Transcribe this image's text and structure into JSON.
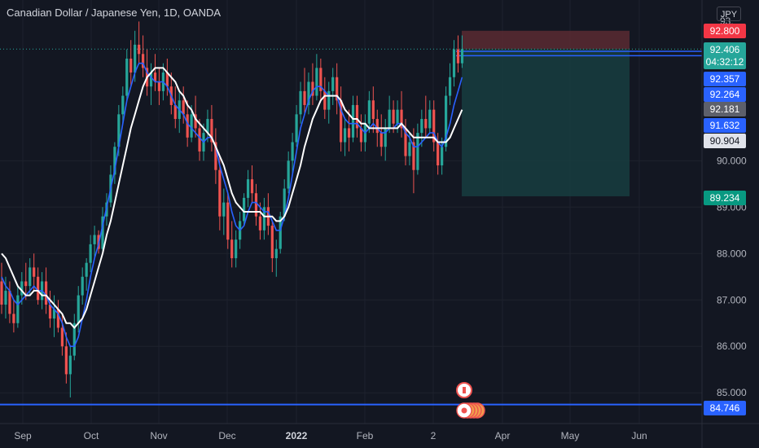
{
  "header": {
    "symbol_title": "Canadian Dollar / Japanese Yen, 1D, OANDA",
    "currency": "JPY"
  },
  "colors": {
    "background": "#131722",
    "grid": "#1e222d",
    "axis_text": "#b2b5be",
    "bull": "#26a69a",
    "bear": "#ef5350",
    "ma_fast": "#2962ff",
    "ma_slow": "#ffffff",
    "horizontal_line": "#2962ff",
    "stop_zone": "#5b2a31",
    "target_zone": "#173d3f"
  },
  "chart_data": {
    "type": "candlestick",
    "title": "Canadian Dollar / Japanese Yen, 1D, OANDA",
    "ylim": [
      84.6,
      93.2
    ],
    "grid": true,
    "x_ticks": [
      "Sep",
      "Oct",
      "Nov",
      "Dec",
      "2022",
      "Feb",
      "2",
      "Apr",
      "May",
      "Jun"
    ],
    "y_ticks": [
      85.0,
      86.0,
      87.0,
      88.0,
      89.0,
      90.0
    ],
    "price_labels": [
      {
        "text": "92.800",
        "kind": "stop"
      },
      {
        "text": "92.406",
        "kind": "last"
      },
      {
        "text": "04:32:12",
        "kind": "countdown"
      },
      {
        "text": "92.357",
        "kind": "blue"
      },
      {
        "text": "92.264",
        "kind": "blue"
      },
      {
        "text": "92.181",
        "kind": "gray"
      },
      {
        "text": "91.632",
        "kind": "blue"
      },
      {
        "text": "90.904",
        "kind": "white"
      },
      {
        "text": "89.234",
        "kind": "target"
      },
      {
        "text": "84.746",
        "kind": "blue"
      }
    ],
    "horizontal_line": 84.746,
    "last_price": 92.406,
    "position": {
      "entry": 92.406,
      "stop": 92.8,
      "target": 89.234
    },
    "candles": [
      {
        "o": 87.4,
        "h": 87.8,
        "l": 86.7,
        "c": 86.9
      },
      {
        "o": 86.9,
        "h": 87.5,
        "l": 86.6,
        "c": 87.2
      },
      {
        "o": 87.2,
        "h": 87.4,
        "l": 86.5,
        "c": 86.7
      },
      {
        "o": 86.7,
        "h": 87.0,
        "l": 86.3,
        "c": 86.5
      },
      {
        "o": 86.5,
        "h": 87.3,
        "l": 86.4,
        "c": 87.1
      },
      {
        "o": 87.1,
        "h": 87.6,
        "l": 86.9,
        "c": 87.4
      },
      {
        "o": 87.4,
        "h": 87.8,
        "l": 87.0,
        "c": 87.3
      },
      {
        "o": 87.3,
        "h": 87.9,
        "l": 87.1,
        "c": 87.7
      },
      {
        "o": 87.7,
        "h": 88.0,
        "l": 87.2,
        "c": 87.5
      },
      {
        "o": 87.5,
        "h": 87.7,
        "l": 86.9,
        "c": 87.0
      },
      {
        "o": 87.0,
        "h": 87.6,
        "l": 86.8,
        "c": 87.4
      },
      {
        "o": 87.4,
        "h": 87.7,
        "l": 86.7,
        "c": 86.9
      },
      {
        "o": 86.9,
        "h": 87.2,
        "l": 86.4,
        "c": 86.6
      },
      {
        "o": 86.6,
        "h": 87.1,
        "l": 86.2,
        "c": 86.8
      },
      {
        "o": 86.8,
        "h": 87.0,
        "l": 86.3,
        "c": 86.4
      },
      {
        "o": 86.4,
        "h": 86.7,
        "l": 85.8,
        "c": 86.0
      },
      {
        "o": 86.0,
        "h": 86.3,
        "l": 85.2,
        "c": 85.4
      },
      {
        "o": 85.4,
        "h": 86.0,
        "l": 84.9,
        "c": 85.8
      },
      {
        "o": 85.8,
        "h": 86.7,
        "l": 85.7,
        "c": 86.5
      },
      {
        "o": 86.5,
        "h": 87.3,
        "l": 86.3,
        "c": 87.1
      },
      {
        "o": 87.1,
        "h": 87.7,
        "l": 86.9,
        "c": 87.5
      },
      {
        "o": 87.5,
        "h": 87.9,
        "l": 87.2,
        "c": 87.8
      },
      {
        "o": 87.8,
        "h": 88.4,
        "l": 87.6,
        "c": 88.2
      },
      {
        "o": 88.2,
        "h": 88.6,
        "l": 87.9,
        "c": 88.4
      },
      {
        "o": 88.4,
        "h": 88.5,
        "l": 88.0,
        "c": 88.1
      },
      {
        "o": 88.1,
        "h": 89.0,
        "l": 88.0,
        "c": 88.8
      },
      {
        "o": 88.8,
        "h": 89.3,
        "l": 88.6,
        "c": 89.1
      },
      {
        "o": 89.1,
        "h": 89.9,
        "l": 89.0,
        "c": 89.7
      },
      {
        "o": 89.7,
        "h": 90.4,
        "l": 89.5,
        "c": 90.3
      },
      {
        "o": 90.3,
        "h": 91.2,
        "l": 90.1,
        "c": 91.0
      },
      {
        "o": 91.0,
        "h": 91.6,
        "l": 90.8,
        "c": 91.4
      },
      {
        "o": 91.4,
        "h": 92.4,
        "l": 91.3,
        "c": 92.2
      },
      {
        "o": 92.2,
        "h": 92.6,
        "l": 91.6,
        "c": 91.9
      },
      {
        "o": 91.9,
        "h": 92.8,
        "l": 91.7,
        "c": 92.5
      },
      {
        "o": 92.5,
        "h": 93.0,
        "l": 92.1,
        "c": 92.3
      },
      {
        "o": 92.3,
        "h": 92.7,
        "l": 91.8,
        "c": 92.0
      },
      {
        "o": 92.0,
        "h": 92.4,
        "l": 91.4,
        "c": 91.6
      },
      {
        "o": 91.6,
        "h": 92.1,
        "l": 91.2,
        "c": 91.9
      },
      {
        "o": 91.9,
        "h": 92.3,
        "l": 91.5,
        "c": 91.7
      },
      {
        "o": 91.7,
        "h": 92.0,
        "l": 91.2,
        "c": 91.5
      },
      {
        "o": 91.5,
        "h": 92.1,
        "l": 91.3,
        "c": 91.9
      },
      {
        "o": 91.9,
        "h": 92.2,
        "l": 91.4,
        "c": 91.6
      },
      {
        "o": 91.6,
        "h": 91.9,
        "l": 91.0,
        "c": 91.2
      },
      {
        "o": 91.2,
        "h": 91.6,
        "l": 90.7,
        "c": 90.9
      },
      {
        "o": 90.9,
        "h": 91.5,
        "l": 90.6,
        "c": 91.3
      },
      {
        "o": 91.3,
        "h": 91.6,
        "l": 90.8,
        "c": 91.0
      },
      {
        "o": 91.0,
        "h": 91.3,
        "l": 90.3,
        "c": 90.5
      },
      {
        "o": 90.5,
        "h": 91.2,
        "l": 90.4,
        "c": 91.0
      },
      {
        "o": 91.0,
        "h": 91.4,
        "l": 90.5,
        "c": 90.7
      },
      {
        "o": 90.7,
        "h": 90.9,
        "l": 90.0,
        "c": 90.2
      },
      {
        "o": 90.2,
        "h": 90.8,
        "l": 90.0,
        "c": 90.6
      },
      {
        "o": 90.6,
        "h": 91.1,
        "l": 90.4,
        "c": 90.9
      },
      {
        "o": 90.9,
        "h": 91.2,
        "l": 90.2,
        "c": 90.4
      },
      {
        "o": 90.4,
        "h": 90.7,
        "l": 89.5,
        "c": 89.8
      },
      {
        "o": 89.8,
        "h": 90.1,
        "l": 88.5,
        "c": 88.8
      },
      {
        "o": 88.8,
        "h": 89.4,
        "l": 88.4,
        "c": 89.1
      },
      {
        "o": 89.1,
        "h": 89.3,
        "l": 88.1,
        "c": 88.3
      },
      {
        "o": 88.3,
        "h": 88.7,
        "l": 87.7,
        "c": 87.9
      },
      {
        "o": 87.9,
        "h": 88.5,
        "l": 87.7,
        "c": 88.3
      },
      {
        "o": 88.3,
        "h": 88.9,
        "l": 88.1,
        "c": 88.7
      },
      {
        "o": 88.7,
        "h": 89.3,
        "l": 88.6,
        "c": 89.2
      },
      {
        "o": 89.2,
        "h": 89.8,
        "l": 89.0,
        "c": 89.6
      },
      {
        "o": 89.6,
        "h": 89.9,
        "l": 89.1,
        "c": 89.3
      },
      {
        "o": 89.3,
        "h": 89.5,
        "l": 88.6,
        "c": 88.8
      },
      {
        "o": 88.8,
        "h": 89.1,
        "l": 88.3,
        "c": 88.5
      },
      {
        "o": 88.5,
        "h": 89.2,
        "l": 88.3,
        "c": 89.0
      },
      {
        "o": 89.0,
        "h": 89.3,
        "l": 88.4,
        "c": 88.6
      },
      {
        "o": 88.6,
        "h": 88.7,
        "l": 87.6,
        "c": 87.9
      },
      {
        "o": 87.9,
        "h": 88.3,
        "l": 87.5,
        "c": 88.1
      },
      {
        "o": 88.1,
        "h": 88.9,
        "l": 88.0,
        "c": 88.8
      },
      {
        "o": 88.8,
        "h": 89.6,
        "l": 88.7,
        "c": 89.4
      },
      {
        "o": 89.4,
        "h": 90.2,
        "l": 89.3,
        "c": 90.0
      },
      {
        "o": 90.0,
        "h": 90.6,
        "l": 89.7,
        "c": 90.4
      },
      {
        "o": 90.4,
        "h": 91.2,
        "l": 90.3,
        "c": 91.0
      },
      {
        "o": 91.0,
        "h": 91.7,
        "l": 90.8,
        "c": 91.5
      },
      {
        "o": 91.5,
        "h": 92.0,
        "l": 91.0,
        "c": 91.2
      },
      {
        "o": 91.2,
        "h": 91.9,
        "l": 91.0,
        "c": 91.7
      },
      {
        "o": 91.7,
        "h": 92.1,
        "l": 91.2,
        "c": 91.4
      },
      {
        "o": 91.4,
        "h": 92.3,
        "l": 91.3,
        "c": 92.0
      },
      {
        "o": 92.0,
        "h": 92.2,
        "l": 91.3,
        "c": 91.5
      },
      {
        "o": 91.5,
        "h": 91.8,
        "l": 90.9,
        "c": 91.1
      },
      {
        "o": 91.1,
        "h": 91.7,
        "l": 90.8,
        "c": 91.5
      },
      {
        "o": 91.5,
        "h": 92.0,
        "l": 91.2,
        "c": 91.8
      },
      {
        "o": 91.8,
        "h": 92.1,
        "l": 91.0,
        "c": 91.3
      },
      {
        "o": 91.3,
        "h": 91.6,
        "l": 90.2,
        "c": 90.4
      },
      {
        "o": 90.4,
        "h": 90.9,
        "l": 90.1,
        "c": 90.7
      },
      {
        "o": 90.7,
        "h": 91.1,
        "l": 90.2,
        "c": 90.5
      },
      {
        "o": 90.5,
        "h": 91.4,
        "l": 90.4,
        "c": 91.2
      },
      {
        "o": 91.2,
        "h": 91.4,
        "l": 90.5,
        "c": 90.7
      },
      {
        "o": 90.7,
        "h": 91.0,
        "l": 90.2,
        "c": 90.4
      },
      {
        "o": 90.4,
        "h": 91.0,
        "l": 90.2,
        "c": 90.8
      },
      {
        "o": 90.8,
        "h": 91.5,
        "l": 90.6,
        "c": 91.3
      },
      {
        "o": 91.3,
        "h": 91.6,
        "l": 90.6,
        "c": 90.9
      },
      {
        "o": 90.9,
        "h": 91.1,
        "l": 90.3,
        "c": 90.6
      },
      {
        "o": 90.6,
        "h": 91.0,
        "l": 90.1,
        "c": 90.3
      },
      {
        "o": 90.3,
        "h": 90.9,
        "l": 90.0,
        "c": 90.7
      },
      {
        "o": 90.7,
        "h": 91.4,
        "l": 90.6,
        "c": 91.1
      },
      {
        "o": 91.1,
        "h": 91.3,
        "l": 90.6,
        "c": 90.8
      },
      {
        "o": 90.8,
        "h": 91.3,
        "l": 90.6,
        "c": 91.1
      },
      {
        "o": 91.1,
        "h": 91.5,
        "l": 90.5,
        "c": 90.7
      },
      {
        "o": 90.7,
        "h": 90.9,
        "l": 89.9,
        "c": 90.1
      },
      {
        "o": 90.1,
        "h": 90.6,
        "l": 89.9,
        "c": 90.4
      },
      {
        "o": 90.4,
        "h": 90.7,
        "l": 89.3,
        "c": 89.8
      },
      {
        "o": 89.8,
        "h": 90.8,
        "l": 89.7,
        "c": 90.6
      },
      {
        "o": 90.6,
        "h": 91.1,
        "l": 90.3,
        "c": 90.9
      },
      {
        "o": 90.9,
        "h": 91.4,
        "l": 90.5,
        "c": 90.7
      },
      {
        "o": 90.7,
        "h": 91.3,
        "l": 90.6,
        "c": 91.1
      },
      {
        "o": 91.1,
        "h": 91.3,
        "l": 90.2,
        "c": 90.4
      },
      {
        "o": 90.4,
        "h": 90.6,
        "l": 89.7,
        "c": 89.9
      },
      {
        "o": 89.9,
        "h": 90.5,
        "l": 89.7,
        "c": 90.3
      },
      {
        "o": 90.3,
        "h": 91.6,
        "l": 90.2,
        "c": 91.4
      },
      {
        "o": 91.4,
        "h": 92.1,
        "l": 91.2,
        "c": 91.8
      },
      {
        "o": 91.8,
        "h": 92.6,
        "l": 91.6,
        "c": 92.4
      },
      {
        "o": 92.4,
        "h": 92.7,
        "l": 91.9,
        "c": 92.1
      },
      {
        "o": 92.1,
        "h": 92.7,
        "l": 92.0,
        "c": 92.406
      }
    ],
    "series": [
      {
        "name": "",
        "color": "#2962ff",
        "values": [
          87.5,
          87.3,
          87.2,
          87.0,
          86.9,
          87.0,
          87.1,
          87.2,
          87.3,
          87.2,
          87.2,
          87.1,
          86.9,
          86.8,
          86.7,
          86.5,
          86.2,
          86.0,
          86.0,
          86.2,
          86.6,
          87.0,
          87.5,
          87.9,
          88.2,
          88.6,
          89.0,
          89.4,
          89.8,
          90.3,
          90.8,
          91.3,
          91.6,
          91.9,
          92.1,
          92.1,
          91.9,
          91.8,
          91.7,
          91.7,
          91.7,
          91.6,
          91.4,
          91.2,
          91.1,
          91.0,
          90.8,
          90.7,
          90.6,
          90.5,
          90.4,
          90.5,
          90.5,
          90.3,
          89.9,
          89.6,
          89.3,
          88.9,
          88.6,
          88.5,
          88.6,
          88.9,
          89.1,
          89.1,
          89.0,
          88.9,
          88.9,
          88.7,
          88.5,
          88.5,
          88.8,
          89.2,
          89.7,
          90.2,
          90.7,
          91.0,
          91.3,
          91.5,
          91.6,
          91.6,
          91.5,
          91.4,
          91.4,
          91.4,
          91.1,
          90.9,
          90.8,
          90.8,
          90.8,
          90.7,
          90.6,
          90.7,
          90.8,
          90.7,
          90.6,
          90.6,
          90.7,
          90.7,
          90.8,
          90.8,
          90.6,
          90.5,
          90.3,
          90.3,
          90.4,
          90.5,
          90.6,
          90.6,
          90.4,
          90.3,
          90.5,
          90.8,
          91.2,
          91.5,
          91.8
        ]
      },
      {
        "name": "",
        "color": "#ffffff",
        "values": [
          88.0,
          87.9,
          87.7,
          87.5,
          87.3,
          87.2,
          87.1,
          87.1,
          87.2,
          87.2,
          87.1,
          87.1,
          87.0,
          86.9,
          86.8,
          86.7,
          86.5,
          86.5,
          86.4,
          86.5,
          86.6,
          86.8,
          87.1,
          87.4,
          87.7,
          88.0,
          88.4,
          88.7,
          89.1,
          89.5,
          89.9,
          90.3,
          90.7,
          91.0,
          91.3,
          91.6,
          91.8,
          91.9,
          92.0,
          92.0,
          92.0,
          91.9,
          91.8,
          91.7,
          91.5,
          91.4,
          91.2,
          91.1,
          90.9,
          90.8,
          90.7,
          90.6,
          90.5,
          90.3,
          90.1,
          89.9,
          89.6,
          89.3,
          89.1,
          89.0,
          88.9,
          88.9,
          88.9,
          88.9,
          88.9,
          88.8,
          88.8,
          88.8,
          88.7,
          88.7,
          88.8,
          89.0,
          89.3,
          89.6,
          89.9,
          90.3,
          90.6,
          90.9,
          91.1,
          91.3,
          91.4,
          91.4,
          91.4,
          91.4,
          91.3,
          91.1,
          91.0,
          90.9,
          90.9,
          90.8,
          90.8,
          90.7,
          90.7,
          90.7,
          90.7,
          90.7,
          90.7,
          90.7,
          90.7,
          90.8,
          90.7,
          90.6,
          90.5,
          90.5,
          90.5,
          90.5,
          90.5,
          90.5,
          90.4,
          90.4,
          90.4,
          90.5,
          90.7,
          90.9,
          91.1
        ]
      }
    ]
  }
}
